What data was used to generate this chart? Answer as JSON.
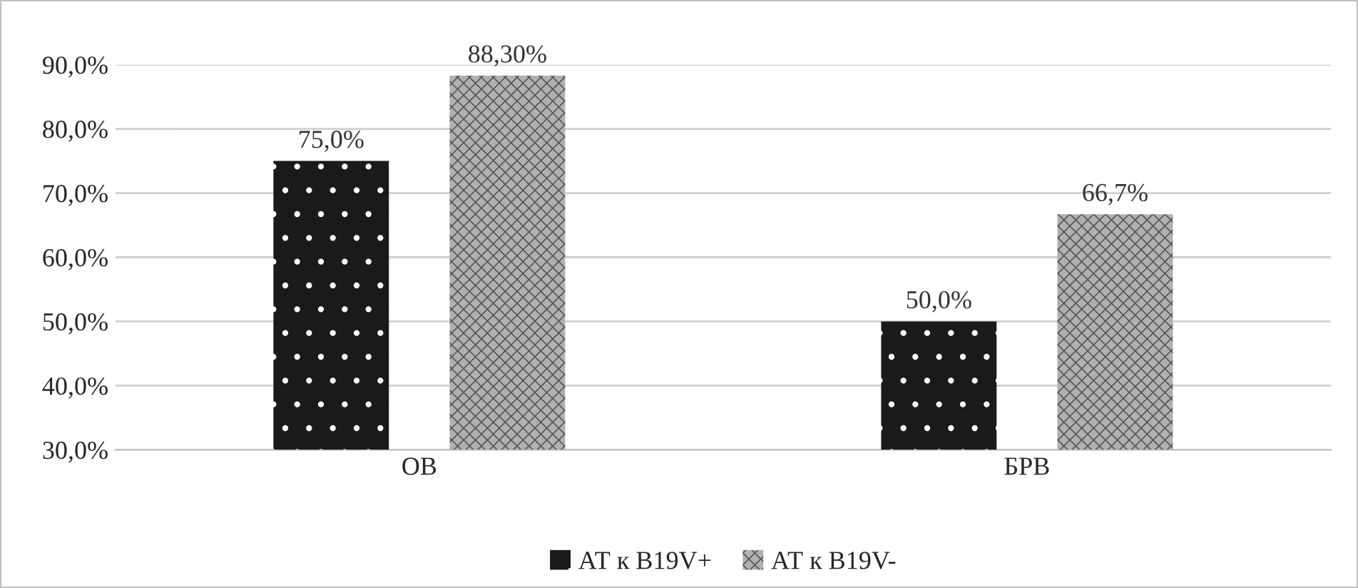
{
  "chart_data": {
    "type": "bar",
    "categories": [
      "ОВ",
      "БРВ"
    ],
    "series": [
      {
        "name": "АТ к В19V+",
        "color": "#1a1a1a",
        "values": [
          75.0,
          50.0
        ],
        "value_labels": [
          "75,0%",
          "50,0%"
        ]
      },
      {
        "name": "АТ к В19V-",
        "color": "#b0b0b0",
        "values": [
          88.3,
          66.7
        ],
        "value_labels": [
          "88,30%",
          "66,7%"
        ]
      }
    ],
    "ylim": [
      30,
      90
    ],
    "yticks": [
      {
        "value": 30,
        "label": "30,0%"
      },
      {
        "value": 40,
        "label": "40,0%"
      },
      {
        "value": 50,
        "label": "50,0%"
      },
      {
        "value": 60,
        "label": "60,0%"
      },
      {
        "value": 70,
        "label": "70,0%"
      },
      {
        "value": 80,
        "label": "80,0%"
      },
      {
        "value": 90,
        "label": "90,0%"
      }
    ],
    "grid": "y",
    "legend": "bottom"
  }
}
